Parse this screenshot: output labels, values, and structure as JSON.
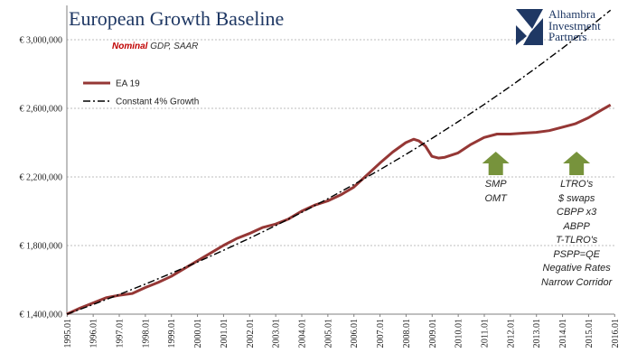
{
  "chart_data": {
    "type": "line",
    "title": "European Growth Baseline",
    "subtitle": {
      "highlight": "Nominal",
      "rest": "GDP, SAAR"
    },
    "ylim": [
      1400000,
      3200000
    ],
    "yticks": [
      1400000,
      1800000,
      2200000,
      2600000,
      3000000
    ],
    "ytick_labels": [
      "€ 1,400,000",
      "€ 1,800,000",
      "€ 2,200,000",
      "€ 2,600,000",
      "€ 3,000,000"
    ],
    "xlim": [
      1995.0,
      2016.0
    ],
    "xtick_labels": [
      "1995.01",
      "1996.01",
      "1997.01",
      "1998.01",
      "1999.01",
      "2000.01",
      "2001.01",
      "2002.01",
      "2003.01",
      "2004.01",
      "2005.01",
      "2006.01",
      "2007.01",
      "2008.01",
      "2009.01",
      "2010.01",
      "2011.01",
      "2012.01",
      "2013.01",
      "2014.01",
      "2015.01",
      "2016.01"
    ],
    "grid": true,
    "legend_position": "top-left",
    "series": [
      {
        "name": "EA 19",
        "color": "#953735",
        "style": "solid",
        "x": [
          1995.0,
          1995.5,
          1996.0,
          1996.5,
          1997.0,
          1997.5,
          1998.0,
          1998.5,
          1999.0,
          1999.5,
          2000.0,
          2000.5,
          2001.0,
          2001.5,
          2002.0,
          2002.5,
          2003.0,
          2003.5,
          2004.0,
          2004.5,
          2005.0,
          2005.5,
          2006.0,
          2006.5,
          2007.0,
          2007.5,
          2008.0,
          2008.3,
          2008.5,
          2008.75,
          2009.0,
          2009.25,
          2009.5,
          2010.0,
          2010.5,
          2011.0,
          2011.5,
          2012.0,
          2012.5,
          2013.0,
          2013.5,
          2014.0,
          2014.5,
          2015.0,
          2015.5,
          2015.85
        ],
        "values": [
          1400000,
          1435000,
          1465000,
          1495000,
          1510000,
          1520000,
          1555000,
          1585000,
          1620000,
          1665000,
          1710000,
          1755000,
          1800000,
          1840000,
          1870000,
          1905000,
          1925000,
          1955000,
          2000000,
          2035000,
          2060000,
          2095000,
          2140000,
          2210000,
          2280000,
          2345000,
          2400000,
          2420000,
          2410000,
          2380000,
          2320000,
          2310000,
          2315000,
          2340000,
          2390000,
          2430000,
          2450000,
          2450000,
          2455000,
          2460000,
          2470000,
          2490000,
          2510000,
          2545000,
          2590000,
          2620000
        ]
      },
      {
        "name": "Constant 4% Growth",
        "color": "#000000",
        "style": "dash-dot",
        "x": [
          1995.0,
          1996.0,
          1997.0,
          1998.0,
          1999.0,
          2000.0,
          2001.0,
          2002.0,
          2003.0,
          2004.0,
          2005.0,
          2006.0,
          2007.0,
          2008.0,
          2009.0,
          2010.0,
          2011.0,
          2012.0,
          2013.0,
          2014.0,
          2015.0,
          2015.85
        ],
        "values": [
          1400000,
          1456000,
          1514240,
          1574810,
          1637802,
          1703314,
          1771447,
          1842305,
          1915997,
          1992637,
          2072342,
          2155236,
          2241445,
          2331103,
          2424347,
          2521321,
          2622174,
          2727061,
          2836143,
          2949589,
          3067572,
          3172000
        ]
      }
    ],
    "annotations": [
      {
        "name": "smp-annotation",
        "arrow_color": "#77933c",
        "x": 2011.45,
        "lines": [
          "SMP",
          "OMT"
        ]
      },
      {
        "name": "ltro-annotation",
        "arrow_color": "#77933c",
        "x": 2014.55,
        "lines": [
          "LTRO's",
          "$ swaps",
          "CBPP x3",
          "ABPP",
          "T-TLRO's",
          "PSPP=QE",
          "Negative Rates",
          "Narrow Corridor"
        ]
      }
    ]
  },
  "logo": {
    "lines": [
      "Alhambra",
      "Investment",
      "Partners"
    ],
    "color": "#1f3864"
  }
}
